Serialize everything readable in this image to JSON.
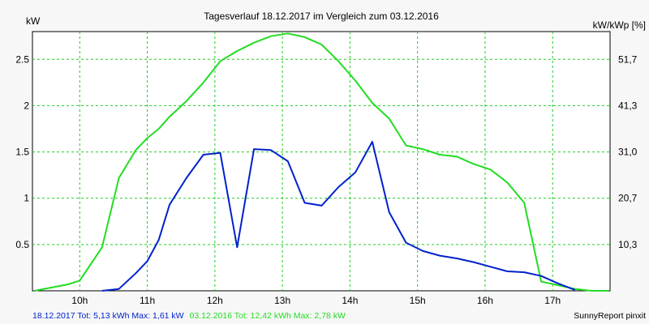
{
  "chart_data": {
    "type": "line",
    "title": "Tagesverlauf 18.12.2017 im Vergleich zum 03.12.2016",
    "ylabel_left": "kW",
    "ylabel_right": "kW/kWp [%]",
    "xlim": [
      9.3,
      17.85
    ],
    "ylim": [
      0,
      2.8
    ],
    "x_ticks": [
      {
        "value": 10,
        "label": "10h"
      },
      {
        "value": 11,
        "label": "11h"
      },
      {
        "value": 12,
        "label": "12h"
      },
      {
        "value": 13,
        "label": "13h"
      },
      {
        "value": 14,
        "label": "14h"
      },
      {
        "value": 15,
        "label": "15h"
      },
      {
        "value": 16,
        "label": "16h"
      },
      {
        "value": 17,
        "label": "17h"
      }
    ],
    "y_ticks_left": [
      {
        "value": 0.5,
        "label": "0.5"
      },
      {
        "value": 1,
        "label": "1"
      },
      {
        "value": 1.5,
        "label": "1.5"
      },
      {
        "value": 2,
        "label": "2"
      },
      {
        "value": 2.5,
        "label": "2.5"
      }
    ],
    "y_ticks_right": [
      {
        "value": 0.5,
        "label": "10,3"
      },
      {
        "value": 1,
        "label": "20,7"
      },
      {
        "value": 1.5,
        "label": "31,0"
      },
      {
        "value": 2,
        "label": "41,3"
      },
      {
        "value": 2.5,
        "label": "51,7"
      }
    ],
    "grid": true,
    "series": [
      {
        "color": "#22dd22",
        "values": [
          [
            9.33,
            0.0
          ],
          [
            9.83,
            0.07
          ],
          [
            10.0,
            0.11
          ],
          [
            10.33,
            0.47
          ],
          [
            10.58,
            1.22
          ],
          [
            10.83,
            1.52
          ],
          [
            11.0,
            1.65
          ],
          [
            11.17,
            1.75
          ],
          [
            11.33,
            1.88
          ],
          [
            11.58,
            2.05
          ],
          [
            11.83,
            2.25
          ],
          [
            12.08,
            2.48
          ],
          [
            12.33,
            2.59
          ],
          [
            12.58,
            2.68
          ],
          [
            12.83,
            2.75
          ],
          [
            13.08,
            2.78
          ],
          [
            13.33,
            2.74
          ],
          [
            13.58,
            2.66
          ],
          [
            13.83,
            2.48
          ],
          [
            14.08,
            2.27
          ],
          [
            14.33,
            2.03
          ],
          [
            14.58,
            1.86
          ],
          [
            14.83,
            1.57
          ],
          [
            15.08,
            1.53
          ],
          [
            15.33,
            1.47
          ],
          [
            15.58,
            1.45
          ],
          [
            15.83,
            1.37
          ],
          [
            16.08,
            1.31
          ],
          [
            16.33,
            1.17
          ],
          [
            16.58,
            0.95
          ],
          [
            16.83,
            0.1
          ],
          [
            17.08,
            0.06
          ],
          [
            17.33,
            0.02
          ],
          [
            17.58,
            0.0
          ],
          [
            17.83,
            0.0
          ]
        ]
      },
      {
        "color": "#0022cc",
        "values": [
          [
            10.33,
            0.0
          ],
          [
            10.58,
            0.02
          ],
          [
            10.83,
            0.19
          ],
          [
            11.0,
            0.32
          ],
          [
            11.17,
            0.55
          ],
          [
            11.33,
            0.93
          ],
          [
            11.58,
            1.22
          ],
          [
            11.83,
            1.47
          ],
          [
            12.08,
            1.49
          ],
          [
            12.33,
            0.47
          ],
          [
            12.58,
            1.53
          ],
          [
            12.83,
            1.52
          ],
          [
            13.08,
            1.4
          ],
          [
            13.33,
            0.95
          ],
          [
            13.58,
            0.92
          ],
          [
            13.83,
            1.12
          ],
          [
            14.08,
            1.28
          ],
          [
            14.33,
            1.61
          ],
          [
            14.58,
            0.85
          ],
          [
            14.83,
            0.52
          ],
          [
            15.08,
            0.43
          ],
          [
            15.33,
            0.38
          ],
          [
            15.58,
            0.35
          ],
          [
            15.83,
            0.31
          ],
          [
            16.08,
            0.26
          ],
          [
            16.33,
            0.21
          ],
          [
            16.58,
            0.2
          ],
          [
            16.83,
            0.16
          ],
          [
            17.08,
            0.08
          ],
          [
            17.33,
            0.01
          ]
        ]
      }
    ],
    "footer": [
      {
        "text": "18.12.2017 Tot: 5,13 kWh Max: 1,61 kW",
        "color": "#0022cc"
      },
      {
        "text": "03.12.2016 Tot: 12,42 kWh Max: 2,78 kW",
        "color": "#22dd22"
      }
    ],
    "credit": "SunnyReport pinxit"
  }
}
